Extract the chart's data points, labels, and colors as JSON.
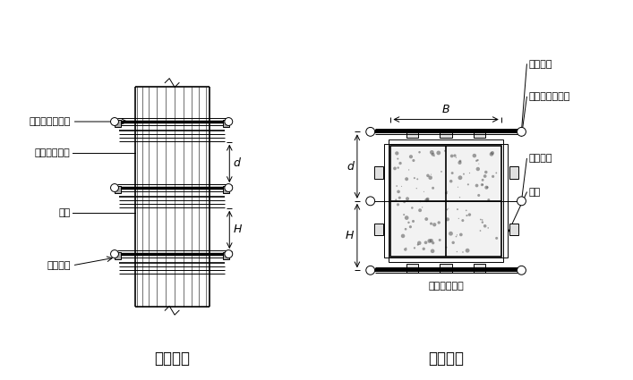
{
  "bg_color": "#ffffff",
  "line_color": "#000000",
  "title1": "柱立面图",
  "title2": "柱剖面图",
  "label_zhuzhuan": "柱箍（圆钢管）",
  "label_jingeng": "竖愣（方木）",
  "label_mianban": "面板",
  "label_duila": "对拉螺栓",
  "font_size_title": 12,
  "font_size_label": 8
}
